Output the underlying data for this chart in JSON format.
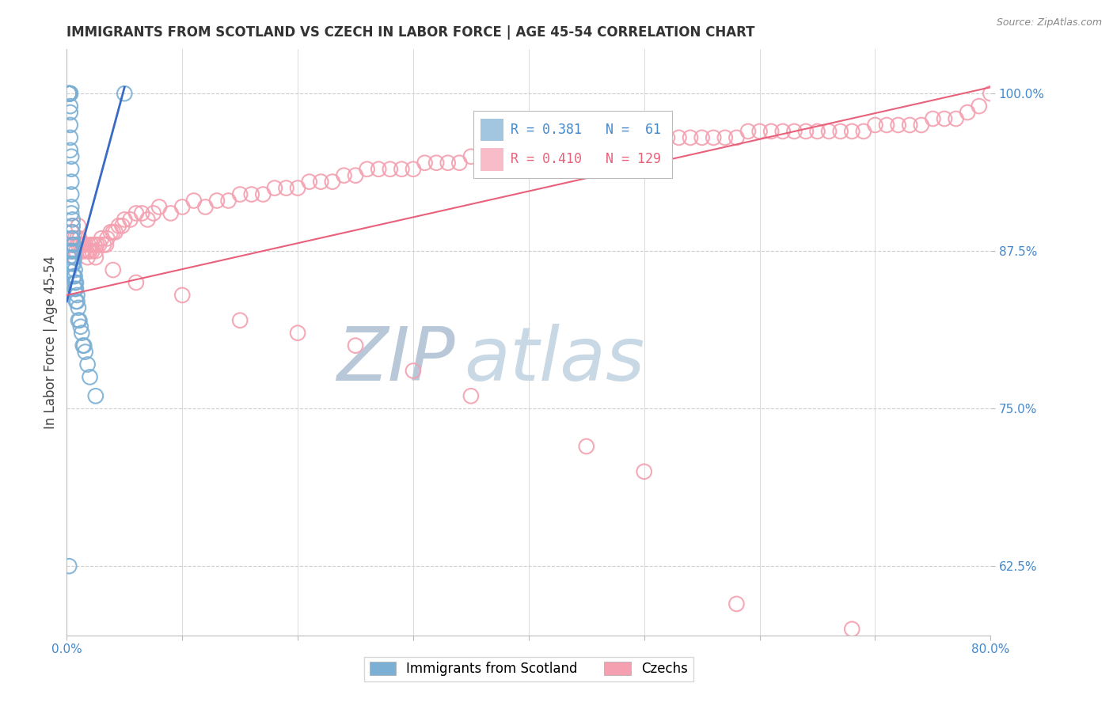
{
  "title": "IMMIGRANTS FROM SCOTLAND VS CZECH IN LABOR FORCE | AGE 45-54 CORRELATION CHART",
  "source": "Source: ZipAtlas.com",
  "ylabel": "In Labor Force | Age 45-54",
  "xlim": [
    0.0,
    0.8
  ],
  "ylim": [
    0.57,
    1.035
  ],
  "xticks": [
    0.0,
    0.1,
    0.2,
    0.3,
    0.4,
    0.5,
    0.6,
    0.7,
    0.8
  ],
  "yticks": [
    0.625,
    0.75,
    0.875,
    1.0
  ],
  "scotland_R": 0.381,
  "scotland_N": 61,
  "czech_R": 0.41,
  "czech_N": 129,
  "scotland_color": "#7BAFD4",
  "czech_color": "#F4A0B0",
  "scotland_line_color": "#3A6BC4",
  "czech_line_color": "#E8607A",
  "grid_color": "#CCCCCC",
  "axis_color": "#BBBBBB",
  "watermark_zip_color": "#C8D8E8",
  "watermark_atlas_color": "#D0D8E0",
  "background_color": "#FFFFFF",
  "tick_color": "#4488CC",
  "scotland_x": [
    0.002,
    0.002,
    0.002,
    0.002,
    0.002,
    0.002,
    0.002,
    0.003,
    0.003,
    0.003,
    0.003,
    0.003,
    0.003,
    0.003,
    0.003,
    0.004,
    0.004,
    0.004,
    0.004,
    0.004,
    0.004,
    0.005,
    0.005,
    0.005,
    0.005,
    0.005,
    0.006,
    0.006,
    0.006,
    0.006,
    0.007,
    0.007,
    0.007,
    0.008,
    0.008,
    0.009,
    0.009,
    0.01,
    0.011,
    0.012,
    0.013,
    0.015,
    0.016,
    0.018,
    0.02,
    0.025,
    0.002,
    0.002,
    0.003,
    0.003,
    0.004,
    0.004,
    0.005,
    0.005,
    0.006,
    0.007,
    0.008,
    0.01,
    0.014,
    0.05,
    0.002
  ],
  "scotland_y": [
    1.0,
    1.0,
    1.0,
    1.0,
    1.0,
    1.0,
    1.0,
    1.0,
    1.0,
    1.0,
    0.99,
    0.985,
    0.975,
    0.965,
    0.955,
    0.95,
    0.94,
    0.93,
    0.92,
    0.91,
    0.905,
    0.9,
    0.895,
    0.89,
    0.885,
    0.88,
    0.88,
    0.875,
    0.87,
    0.865,
    0.86,
    0.855,
    0.85,
    0.85,
    0.845,
    0.84,
    0.835,
    0.83,
    0.82,
    0.815,
    0.81,
    0.8,
    0.795,
    0.785,
    0.775,
    0.76,
    0.87,
    0.86,
    0.875,
    0.865,
    0.875,
    0.885,
    0.875,
    0.865,
    0.855,
    0.845,
    0.835,
    0.82,
    0.8,
    1.0,
    0.625
  ],
  "czech_x": [
    0.003,
    0.004,
    0.004,
    0.005,
    0.005,
    0.006,
    0.007,
    0.007,
    0.008,
    0.009,
    0.01,
    0.01,
    0.011,
    0.012,
    0.013,
    0.014,
    0.015,
    0.016,
    0.017,
    0.018,
    0.019,
    0.02,
    0.021,
    0.022,
    0.024,
    0.025,
    0.026,
    0.028,
    0.03,
    0.032,
    0.034,
    0.035,
    0.038,
    0.04,
    0.042,
    0.045,
    0.048,
    0.05,
    0.055,
    0.06,
    0.065,
    0.07,
    0.075,
    0.08,
    0.09,
    0.1,
    0.11,
    0.12,
    0.13,
    0.14,
    0.15,
    0.16,
    0.17,
    0.18,
    0.19,
    0.2,
    0.21,
    0.22,
    0.23,
    0.24,
    0.25,
    0.26,
    0.27,
    0.28,
    0.29,
    0.3,
    0.31,
    0.32,
    0.33,
    0.34,
    0.35,
    0.36,
    0.37,
    0.38,
    0.39,
    0.4,
    0.41,
    0.42,
    0.43,
    0.44,
    0.45,
    0.46,
    0.47,
    0.48,
    0.49,
    0.5,
    0.51,
    0.52,
    0.53,
    0.54,
    0.55,
    0.56,
    0.57,
    0.58,
    0.59,
    0.6,
    0.61,
    0.62,
    0.63,
    0.64,
    0.65,
    0.66,
    0.67,
    0.68,
    0.69,
    0.7,
    0.71,
    0.72,
    0.73,
    0.74,
    0.75,
    0.76,
    0.77,
    0.78,
    0.79,
    0.8,
    0.025,
    0.04,
    0.06,
    0.1,
    0.15,
    0.2,
    0.25,
    0.3,
    0.35,
    0.45,
    0.5,
    0.58,
    0.68
  ],
  "czech_y": [
    0.88,
    0.875,
    0.89,
    0.885,
    0.895,
    0.88,
    0.87,
    0.885,
    0.875,
    0.885,
    0.88,
    0.895,
    0.885,
    0.88,
    0.875,
    0.88,
    0.875,
    0.88,
    0.875,
    0.87,
    0.875,
    0.875,
    0.88,
    0.875,
    0.88,
    0.875,
    0.88,
    0.88,
    0.885,
    0.88,
    0.88,
    0.885,
    0.89,
    0.89,
    0.89,
    0.895,
    0.895,
    0.9,
    0.9,
    0.905,
    0.905,
    0.9,
    0.905,
    0.91,
    0.905,
    0.91,
    0.915,
    0.91,
    0.915,
    0.915,
    0.92,
    0.92,
    0.92,
    0.925,
    0.925,
    0.925,
    0.93,
    0.93,
    0.93,
    0.935,
    0.935,
    0.94,
    0.94,
    0.94,
    0.94,
    0.94,
    0.945,
    0.945,
    0.945,
    0.945,
    0.95,
    0.95,
    0.95,
    0.95,
    0.95,
    0.955,
    0.955,
    0.955,
    0.955,
    0.955,
    0.96,
    0.96,
    0.96,
    0.96,
    0.96,
    0.965,
    0.965,
    0.965,
    0.965,
    0.965,
    0.965,
    0.965,
    0.965,
    0.965,
    0.97,
    0.97,
    0.97,
    0.97,
    0.97,
    0.97,
    0.97,
    0.97,
    0.97,
    0.97,
    0.97,
    0.975,
    0.975,
    0.975,
    0.975,
    0.975,
    0.98,
    0.98,
    0.98,
    0.985,
    0.99,
    1.0,
    0.87,
    0.86,
    0.85,
    0.84,
    0.82,
    0.81,
    0.8,
    0.78,
    0.76,
    0.72,
    0.7,
    0.595,
    0.575
  ],
  "scot_trend_x": [
    0.0,
    0.05
  ],
  "scot_trend_y": [
    0.835,
    1.005
  ],
  "czech_trend_x": [
    0.0,
    0.8
  ],
  "czech_trend_y": [
    0.84,
    1.005
  ]
}
